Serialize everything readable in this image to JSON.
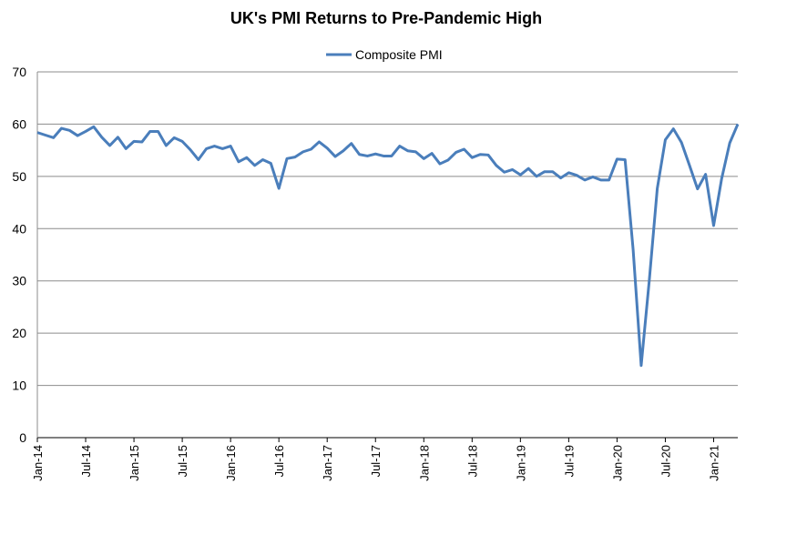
{
  "chart_data": {
    "type": "line",
    "title": "UK's PMI Returns to Pre-Pandemic High",
    "xlabel": "",
    "ylabel": "",
    "ylim": [
      0,
      70
    ],
    "yticks": [
      0,
      10,
      20,
      30,
      40,
      50,
      60,
      70
    ],
    "xtick_labels": [
      "Jan-14",
      "Jul-14",
      "Jan-15",
      "Jul-15",
      "Jan-16",
      "Jul-16",
      "Jan-17",
      "Jul-17",
      "Jan-18",
      "Jul-18",
      "Jan-19",
      "Jul-19",
      "Jan-20",
      "Jul-20",
      "Jan-21"
    ],
    "grid": true,
    "legend": "top",
    "x_start": "Jan-14",
    "x_end": "Apr-21",
    "series": [
      {
        "name": "Composite PMI",
        "color": "#4a7ebb",
        "values": [
          58.4,
          57.9,
          57.4,
          59.2,
          58.8,
          57.8,
          58.6,
          59.5,
          57.5,
          55.9,
          57.5,
          55.3,
          56.7,
          56.6,
          58.6,
          58.6,
          55.9,
          57.4,
          56.7,
          55.1,
          53.2,
          55.3,
          55.8,
          55.3,
          55.8,
          52.8,
          53.6,
          52.1,
          53.2,
          52.5,
          47.7,
          53.4,
          53.7,
          54.7,
          55.2,
          56.6,
          55.4,
          53.8,
          54.9,
          56.3,
          54.2,
          53.9,
          54.3,
          53.9,
          53.9,
          55.8,
          54.9,
          54.7,
          53.4,
          54.4,
          52.4,
          53.1,
          54.6,
          55.2,
          53.6,
          54.2,
          54.1,
          52.1,
          50.8,
          51.3,
          50.3,
          51.5,
          50.0,
          50.9,
          50.9,
          49.7,
          50.7,
          50.2,
          49.3,
          49.9,
          49.3,
          49.3,
          53.3,
          53.2,
          36.0,
          13.8,
          30.0,
          47.7,
          57.0,
          59.1,
          56.5,
          52.1,
          47.6,
          50.4,
          40.6,
          49.6,
          56.4,
          60.0
        ]
      }
    ]
  }
}
